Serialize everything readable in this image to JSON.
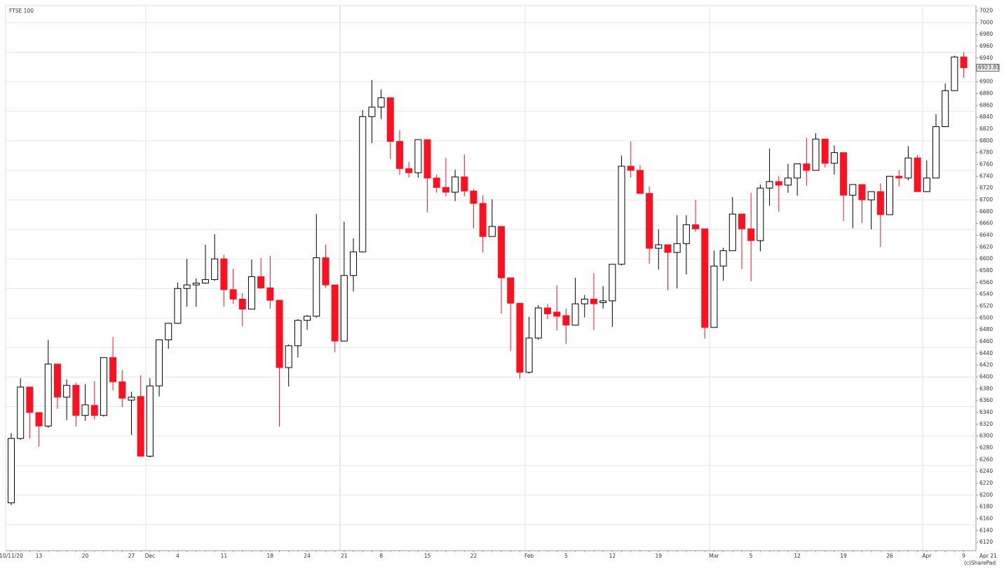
{
  "chart_data": {
    "type": "candlestick",
    "title": "FTSE 100",
    "categories": [
      "10/11/20",
      null,
      null,
      "13",
      null,
      null,
      null,
      null,
      "20",
      null,
      null,
      null,
      null,
      "27",
      null,
      "Dec",
      null,
      null,
      "4",
      null,
      null,
      null,
      null,
      "11",
      null,
      null,
      null,
      null,
      "18",
      null,
      null,
      null,
      "24",
      null,
      null,
      null,
      "21",
      null,
      null,
      null,
      "8",
      null,
      null,
      null,
      null,
      "15",
      null,
      null,
      null,
      null,
      "22",
      null,
      null,
      null,
      null,
      null,
      "Feb",
      null,
      null,
      null,
      "5",
      null,
      null,
      null,
      null,
      "12",
      null,
      null,
      null,
      null,
      "19",
      null,
      null,
      null,
      null,
      null,
      "Mar",
      null,
      null,
      null,
      "5",
      null,
      null,
      null,
      null,
      "12",
      null,
      null,
      null,
      null,
      "19",
      null,
      null,
      null,
      null,
      "26",
      null,
      null,
      null,
      "Apr",
      null,
      null,
      null,
      "9"
    ],
    "x_end_label": "Apr 21",
    "open": [
      6187,
      6296,
      6383,
      6340,
      6317,
      6422,
      6366,
      6386,
      6335,
      6352,
      6335,
      6433,
      6392,
      6361,
      6367,
      6266,
      6385,
      6463,
      6491,
      6550,
      6556,
      6559,
      6565,
      6600,
      6548,
      6532,
      6515,
      6570,
      6551,
      6530,
      6416,
      6453,
      6496,
      6503,
      6602,
      6556,
      6461,
      6572,
      6612,
      6841,
      6857,
      6873,
      6799,
      6753,
      6746,
      6802,
      6737,
      6721,
      6713,
      6739,
      6715,
      6694,
      6638,
      6655,
      6568,
      6525,
      6408,
      6466,
      6517,
      6510,
      6504,
      6488,
      6524,
      6532,
      6526,
      6529,
      6591,
      6757,
      6750,
      6711,
      6618,
      6624,
      6611,
      6626,
      6658,
      6651,
      6484,
      6588,
      6614,
      6676,
      6651,
      6631,
      6720,
      6731,
      6725,
      6737,
      6761,
      6750,
      6803,
      6762,
      6780,
      6708,
      6726,
      6700,
      6714,
      6675,
      6740,
      6737,
      6771,
      6714,
      6737,
      6824,
      6885,
      6942
    ],
    "high": [
      6305,
      6398,
      6383,
      6340,
      6463,
      6422,
      6396,
      6390,
      6388,
      6393,
      6433,
      6468,
      6412,
      6375,
      6403,
      6398,
      6463,
      6491,
      6560,
      6600,
      6567,
      6624,
      6642,
      6607,
      6583,
      6542,
      6599,
      6602,
      6605,
      6530,
      6455,
      6498,
      6505,
      6676,
      6624,
      6556,
      6663,
      6635,
      6852,
      6903,
      6887,
      6873,
      6818,
      6764,
      6802,
      6802,
      6743,
      6771,
      6751,
      6777,
      6718,
      6708,
      6701,
      6655,
      6568,
      6525,
      6502,
      6522,
      6524,
      6555,
      6516,
      6568,
      6539,
      6576,
      6554,
      6591,
      6775,
      6799,
      6759,
      6723,
      6650,
      6624,
      6674,
      6674,
      6700,
      6651,
      6614,
      6619,
      6705,
      6676,
      6712,
      6726,
      6787,
      6740,
      6761,
      6761,
      6805,
      6813,
      6803,
      6792,
      6780,
      6726,
      6726,
      6714,
      6728,
      6740,
      6750,
      6791,
      6776,
      6767,
      6845,
      6897,
      6944,
      6950
    ],
    "low": [
      6183,
      6294,
      6296,
      6282,
      6314,
      6346,
      6327,
      6316,
      6326,
      6328,
      6333,
      6377,
      6349,
      6302,
      6266,
      6264,
      6367,
      6448,
      6490,
      6519,
      6519,
      6558,
      6563,
      6519,
      6524,
      6486,
      6515,
      6549,
      6516,
      6316,
      6384,
      6433,
      6480,
      6501,
      6551,
      6442,
      6461,
      6545,
      6611,
      6796,
      6837,
      6769,
      6742,
      6738,
      6738,
      6679,
      6712,
      6706,
      6698,
      6706,
      6652,
      6611,
      6638,
      6507,
      6444,
      6397,
      6406,
      6463,
      6498,
      6479,
      6456,
      6488,
      6501,
      6480,
      6516,
      6485,
      6589,
      6738,
      6710,
      6592,
      6582,
      6547,
      6550,
      6574,
      6646,
      6465,
      6484,
      6563,
      6614,
      6583,
      6562,
      6613,
      6690,
      6680,
      6712,
      6707,
      6724,
      6750,
      6755,
      6743,
      6664,
      6652,
      6661,
      6650,
      6620,
      6675,
      6723,
      6733,
      6714,
      6714,
      6737,
      6824,
      6885,
      6907
    ],
    "close": [
      6296,
      6383,
      6340,
      6317,
      6422,
      6366,
      6386,
      6335,
      6353,
      6335,
      6433,
      6392,
      6364,
      6366,
      6266,
      6385,
      6463,
      6491,
      6550,
      6556,
      6559,
      6565,
      6600,
      6548,
      6532,
      6515,
      6570,
      6551,
      6530,
      6416,
      6453,
      6496,
      6503,
      6602,
      6556,
      6461,
      6572,
      6612,
      6841,
      6857,
      6873,
      6799,
      6753,
      6746,
      6802,
      6737,
      6721,
      6713,
      6739,
      6715,
      6694,
      6638,
      6655,
      6568,
      6525,
      6408,
      6466,
      6517,
      6507,
      6503,
      6488,
      6524,
      6532,
      6524,
      6529,
      6591,
      6757,
      6750,
      6711,
      6618,
      6624,
      6611,
      6626,
      6658,
      6651,
      6484,
      6588,
      6614,
      6676,
      6651,
      6631,
      6720,
      6731,
      6725,
      6737,
      6761,
      6750,
      6803,
      6762,
      6780,
      6708,
      6726,
      6700,
      6714,
      6675,
      6740,
      6737,
      6771,
      6714,
      6737,
      6824,
      6885,
      6942,
      6923.81
    ],
    "up_color": "#ffffff",
    "down_color": "#ff1020",
    "ylim": [
      6106,
      7029
    ],
    "yticks": [
      6120,
      6140,
      6160,
      6180,
      6200,
      6220,
      6240,
      6260,
      6280,
      6300,
      6320,
      6340,
      6360,
      6380,
      6400,
      6420,
      6440,
      6460,
      6480,
      6500,
      6520,
      6540,
      6560,
      6580,
      6600,
      6620,
      6640,
      6660,
      6680,
      6700,
      6720,
      6740,
      6760,
      6780,
      6800,
      6820,
      6840,
      6860,
      6880,
      6900,
      6920,
      6940,
      6960,
      6980,
      7000,
      7020
    ],
    "y_gridlines": [
      6150,
      6200,
      6250,
      6300,
      6350,
      6400,
      6450,
      6500,
      6550,
      6600,
      6650,
      6700,
      6750,
      6800,
      6850,
      6900,
      6950,
      7000
    ],
    "copyright": "(c)SharePad"
  }
}
